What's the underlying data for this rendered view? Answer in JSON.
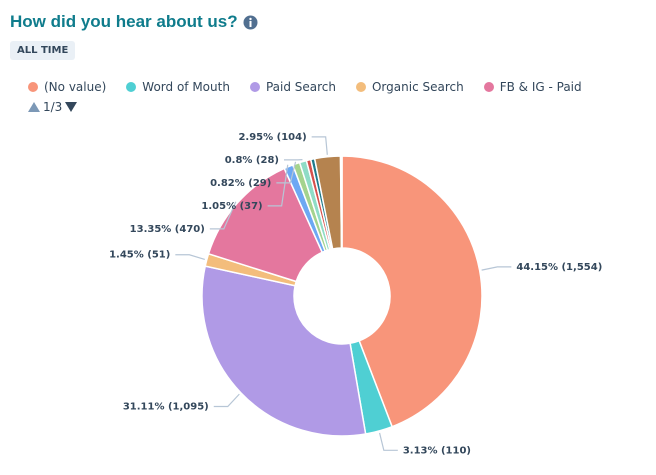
{
  "header": {
    "title": "How did you hear about us?",
    "filter": "ALL TIME"
  },
  "legend_page": "1/3",
  "chart_data": {
    "type": "donut",
    "categories": [
      "(No value)",
      "Word of Mouth",
      "Paid Search",
      "Organic Search",
      "FB & IG - Paid",
      null,
      null,
      null,
      null,
      null,
      null,
      null
    ],
    "values": [
      1554,
      110,
      1095,
      51,
      470,
      37,
      29,
      28,
      18,
      16,
      104,
      6
    ],
    "value_labels": [
      "44.15% (1,554)",
      "3.13% (110)",
      "31.11% (1,095)",
      "1.45% (51)",
      "13.35% (470)",
      "1.05% (37)",
      "0.82% (29)",
      "0.8% (28)",
      null,
      null,
      "2.95% (104)",
      null
    ],
    "colors": [
      "#f8957a",
      "#4fcfd3",
      "#b09ae6",
      "#f3bd7c",
      "#e4779e",
      "#6da8f3",
      "#a4d38e",
      "#8fdcc6",
      "#d6504c",
      "#1f7a8c",
      "#b5834f",
      "#98a6b8"
    ]
  }
}
